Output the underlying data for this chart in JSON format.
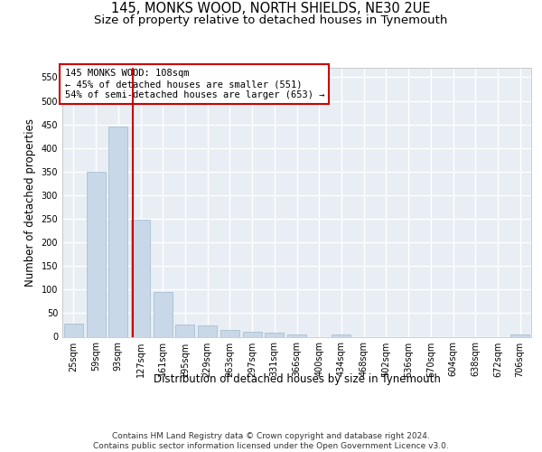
{
  "title": "145, MONKS WOOD, NORTH SHIELDS, NE30 2UE",
  "subtitle": "Size of property relative to detached houses in Tynemouth",
  "xlabel": "Distribution of detached houses by size in Tynemouth",
  "ylabel": "Number of detached properties",
  "bar_color": "#c8d8e8",
  "bar_edge_color": "#a0b8cc",
  "categories": [
    "25sqm",
    "59sqm",
    "93sqm",
    "127sqm",
    "161sqm",
    "195sqm",
    "229sqm",
    "263sqm",
    "297sqm",
    "331sqm",
    "366sqm",
    "400sqm",
    "434sqm",
    "468sqm",
    "502sqm",
    "536sqm",
    "570sqm",
    "604sqm",
    "638sqm",
    "672sqm",
    "706sqm"
  ],
  "values": [
    27,
    350,
    445,
    248,
    94,
    25,
    24,
    14,
    11,
    8,
    5,
    0,
    4,
    0,
    0,
    0,
    0,
    0,
    0,
    0,
    4
  ],
  "ylim": [
    0,
    570
  ],
  "yticks": [
    0,
    50,
    100,
    150,
    200,
    250,
    300,
    350,
    400,
    450,
    500,
    550
  ],
  "vline_x": 2.65,
  "vline_color": "#cc0000",
  "annotation_text": "145 MONKS WOOD: 108sqm\n← 45% of detached houses are smaller (551)\n54% of semi-detached houses are larger (653) →",
  "annotation_box_color": "#ffffff",
  "annotation_box_edge": "#cc0000",
  "footer_text": "Contains HM Land Registry data © Crown copyright and database right 2024.\nContains public sector information licensed under the Open Government Licence v3.0.",
  "bg_color": "#e8eef4",
  "grid_color": "#ffffff",
  "title_fontsize": 10.5,
  "subtitle_fontsize": 9.5,
  "ylabel_fontsize": 8.5,
  "xlabel_fontsize": 8.5,
  "tick_fontsize": 7,
  "annot_fontsize": 7.5,
  "footer_fontsize": 6.5
}
